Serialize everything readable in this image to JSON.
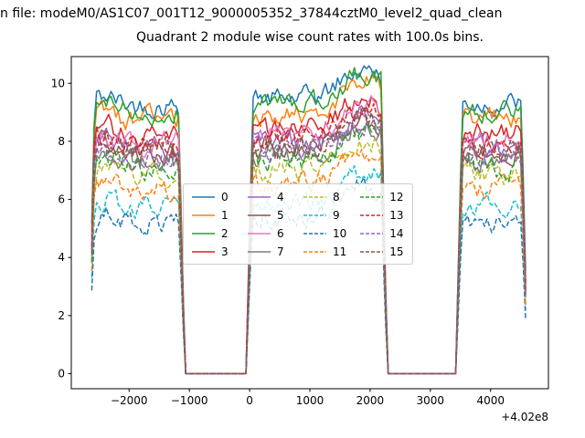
{
  "figure": {
    "header_text": "n file: modeM0/AS1C07_001T12_9000005352_37844cztM0_level2_quad_clean",
    "title": "Quadrant 2 module wise count rates with 100.0s bins."
  },
  "chart_data": {
    "type": "line",
    "title": "Quadrant 2 module wise count rates with 100.0s bins.",
    "xlabel": "",
    "ylabel": "",
    "x_offset_label": "+4.02e8",
    "xlim": [
      -2960,
      4960
    ],
    "ylim": [
      -0.52,
      10.92
    ],
    "xtick_values": [
      -2000,
      -1000,
      0,
      1000,
      2000,
      3000,
      4000
    ],
    "xtick_labels": [
      "−2000",
      "−1000",
      "0",
      "1000",
      "2000",
      "3000",
      "4000"
    ],
    "ytick_values": [
      0,
      2,
      4,
      6,
      8,
      10
    ],
    "ytick_labels": [
      "0",
      "2",
      "4",
      "6",
      "8",
      "10"
    ],
    "grid": false,
    "bin_seconds": 100.0,
    "legend": {
      "location": "center",
      "columns": 4,
      "order": "column-major"
    },
    "x_sample_range": [
      -2620,
      4600
    ],
    "x_sample_step": 40,
    "segments": {
      "on_windows_x": [
        [
          -2680,
          -1070
        ],
        [
          -60,
          2290
        ],
        [
          3420,
          4620
        ]
      ],
      "off_zero_x": [
        [
          -1070,
          -60
        ],
        [
          2290,
          3420
        ]
      ]
    },
    "series": [
      {
        "label": "0",
        "color": "#1f77b4",
        "dash": false,
        "level": 9.25
      },
      {
        "label": "1",
        "color": "#ff7f0e",
        "dash": false,
        "level": 8.75
      },
      {
        "label": "2",
        "color": "#2ca02c",
        "dash": false,
        "level": 9.0
      },
      {
        "label": "3",
        "color": "#d62728",
        "dash": false,
        "level": 8.2
      },
      {
        "label": "4",
        "color": "#9467bd",
        "dash": false,
        "level": 7.75
      },
      {
        "label": "5",
        "color": "#8c564b",
        "dash": false,
        "level": 7.6
      },
      {
        "label": "6",
        "color": "#e377c2",
        "dash": false,
        "level": 8.0
      },
      {
        "label": "7",
        "color": "#7f7f7f",
        "dash": false,
        "level": 7.3
      },
      {
        "label": "8",
        "color": "#bcbd22",
        "dash": true,
        "level": 6.8
      },
      {
        "label": "9",
        "color": "#17becf",
        "dash": true,
        "level": 5.7
      },
      {
        "label": "10",
        "color": "#1f77b4",
        "dash": true,
        "level": 5.2
      },
      {
        "label": "11",
        "color": "#ff7f0e",
        "dash": true,
        "level": 6.3
      },
      {
        "label": "12",
        "color": "#2ca02c",
        "dash": true,
        "level": 7.05
      },
      {
        "label": "13",
        "color": "#d62728",
        "dash": true,
        "level": 7.9
      },
      {
        "label": "14",
        "color": "#9467bd",
        "dash": true,
        "level": 7.45
      },
      {
        "label": "15",
        "color": "#8c564b",
        "dash": true,
        "level": 7.7
      }
    ],
    "approx_y_peak": 10.4,
    "mid_segment_peak_x": 1900,
    "noise_amplitude": 0.35,
    "seed": 42
  }
}
